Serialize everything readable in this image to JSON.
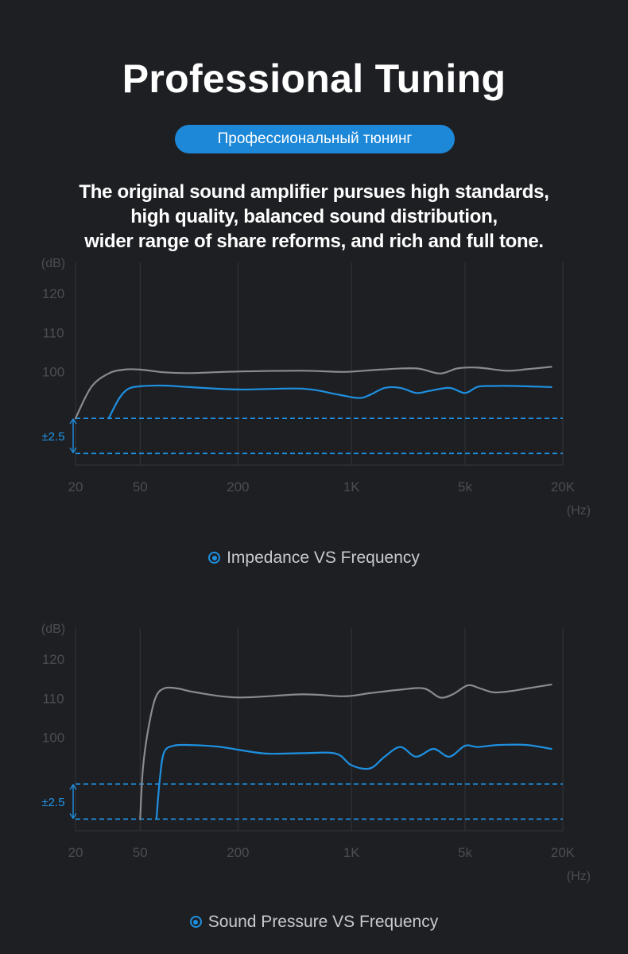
{
  "header": {
    "title": "Professional Tuning",
    "subtitle_pill": "Профессиональный тюнинг",
    "description_lines": [
      "The original sound amplifier pursues high standards,",
      "high quality, balanced sound distribution,",
      "wider range of share reforms, and rich and full tone."
    ]
  },
  "colors": {
    "background": "#1e1f23",
    "accent_blue": "#1e90e0",
    "gray_curve": "#8a8b8f",
    "grid": "#34353a",
    "axis_text": "#4c4d52",
    "band_label": "#2196e6"
  },
  "chart_data": [
    {
      "type": "line",
      "caption": "Impedance VS Frequency",
      "y_unit_label": "(dB)",
      "x_unit_label": "(Hz)",
      "x_scale": "log",
      "x_ticks": [
        {
          "label": "20",
          "value": 20
        },
        {
          "label": "50",
          "value": 50
        },
        {
          "label": "200",
          "value": 200
        },
        {
          "label": "1K",
          "value": 1000
        },
        {
          "label": "5k",
          "value": 5000
        },
        {
          "label": "20K",
          "value": 20000
        }
      ],
      "y_ticks": [
        120,
        110,
        100
      ],
      "band_label": "±2.5",
      "band_range": [
        79,
        88
      ],
      "ylim": [
        76,
        128
      ],
      "grid": true,
      "series": [
        {
          "color": "gray",
          "x": [
            20,
            25,
            32,
            40,
            50,
            70,
            100,
            200,
            500,
            900,
            1500,
            2500,
            3500,
            4500,
            6000,
            9000,
            12000,
            17000
          ],
          "y": [
            88,
            96,
            99.5,
            100.5,
            100.5,
            99.8,
            99.6,
            100.0,
            100.2,
            99.9,
            100.5,
            100.8,
            99.5,
            100.8,
            101.0,
            100.2,
            100.6,
            101.2
          ]
        },
        {
          "color": "blue",
          "x": [
            32,
            37,
            42,
            50,
            70,
            100,
            200,
            500,
            800,
            1100,
            1300,
            1600,
            2000,
            2500,
            3000,
            4000,
            5000,
            6000,
            7500,
            10000,
            17000
          ],
          "y": [
            88,
            93,
            95.5,
            96.2,
            96.4,
            96.0,
            95.4,
            95.6,
            94.2,
            93.2,
            94.0,
            95.8,
            95.8,
            94.5,
            95.0,
            95.8,
            94.5,
            96.1,
            96.3,
            96.3,
            96.0
          ]
        }
      ]
    },
    {
      "type": "line",
      "caption": "Sound Pressure VS Frequency",
      "y_unit_label": "(dB)",
      "x_unit_label": "(Hz)",
      "x_scale": "log",
      "x_ticks": [
        {
          "label": "20",
          "value": 20
        },
        {
          "label": "50",
          "value": 50
        },
        {
          "label": "200",
          "value": 200
        },
        {
          "label": "1K",
          "value": 1000
        },
        {
          "label": "5k",
          "value": 5000
        },
        {
          "label": "20K",
          "value": 20000
        }
      ],
      "y_ticks": [
        120,
        110,
        100
      ],
      "band_label": "±2.5",
      "band_range": [
        79,
        88
      ],
      "ylim": [
        76,
        128
      ],
      "grid": true,
      "series": [
        {
          "color": "gray",
          "x": [
            50,
            52,
            56,
            62,
            70,
            85,
            110,
            200,
            500,
            900,
            1300,
            2000,
            2800,
            3500,
            4200,
            5200,
            6200,
            7500,
            9500,
            12000,
            17000
          ],
          "y": [
            79,
            92,
            102,
            110,
            112.5,
            112.5,
            111.5,
            110.2,
            111.0,
            110.5,
            111.3,
            112.2,
            112.5,
            110.2,
            111.0,
            113.3,
            112.5,
            111.5,
            111.8,
            112.5,
            113.5
          ]
        },
        {
          "color": "blue",
          "x": [
            63,
            66,
            70,
            80,
            100,
            150,
            200,
            300,
            500,
            800,
            1000,
            1300,
            1600,
            2000,
            2500,
            3200,
            4000,
            5000,
            6000,
            8000,
            12000,
            17000
          ],
          "y": [
            79,
            89,
            96,
            97.8,
            98,
            97.6,
            96.8,
            95.8,
            95.9,
            95.8,
            92.8,
            92.0,
            95.0,
            97.5,
            95.0,
            97.0,
            95.0,
            97.8,
            97.5,
            98.0,
            98.0,
            97.0
          ]
        }
      ]
    }
  ]
}
